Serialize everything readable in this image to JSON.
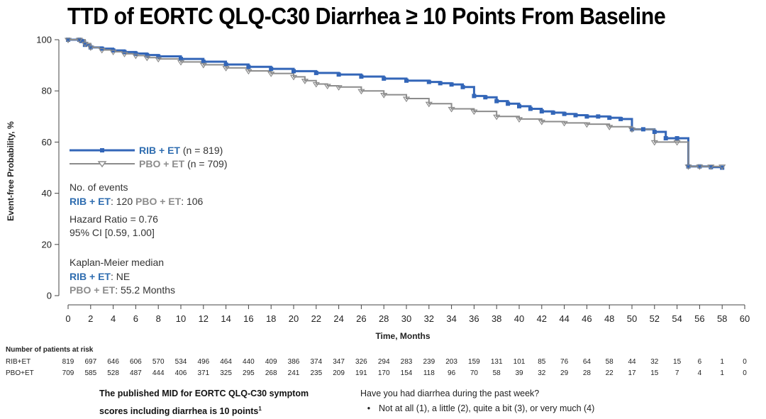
{
  "title": "TTD of EORTC QLQ-C30 Diarrhea ≥ 10 Points From Baseline",
  "colors": {
    "rib": "#3366b8",
    "pbo": "#8c8c8c",
    "axis": "#444444"
  },
  "chart_data": {
    "type": "line",
    "subtype": "kaplan-meier",
    "xlabel": "Time, Months",
    "ylabel": "Event-free Probability, %",
    "xlim": [
      0,
      60
    ],
    "ylim": [
      0,
      100
    ],
    "xticks": [
      0,
      2,
      4,
      6,
      8,
      10,
      12,
      14,
      16,
      18,
      20,
      22,
      24,
      26,
      28,
      30,
      32,
      34,
      36,
      38,
      40,
      42,
      44,
      46,
      48,
      50,
      52,
      54,
      56,
      58,
      60
    ],
    "yticks": [
      0,
      20,
      40,
      60,
      80,
      100
    ],
    "series": [
      {
        "name": "RIB + ET",
        "legend_label": "RIB + ET",
        "legend_n": " (n = 819)",
        "marker": "square",
        "x": [
          0,
          1,
          1.2,
          1.5,
          2,
          3,
          4,
          5,
          6,
          7,
          8,
          10,
          12,
          14,
          16,
          18,
          20,
          22,
          24,
          26,
          28,
          30,
          32,
          33,
          34,
          35,
          36,
          37,
          38,
          39,
          40,
          41,
          42,
          43,
          44,
          45,
          46,
          47,
          48,
          49,
          50,
          51,
          52,
          53,
          54,
          55,
          56,
          57,
          58
        ],
        "y": [
          100,
          100,
          99.5,
          98,
          97,
          96.5,
          95.8,
          95.2,
          94.6,
          94,
          93.5,
          92.5,
          91.4,
          90.3,
          89.4,
          88.6,
          87.7,
          87,
          86.4,
          85.6,
          84.8,
          84,
          83.5,
          83,
          82.5,
          81.5,
          78,
          77.5,
          76,
          75,
          74,
          73,
          72,
          71.5,
          71,
          70.5,
          70,
          70,
          69.5,
          69,
          65,
          65,
          64,
          61.5,
          61.5,
          50.5,
          50.5,
          50.2,
          50
        ]
      },
      {
        "name": "PBO + ET",
        "legend_label": "PBO + ET",
        "legend_n": " (n = 709)",
        "marker": "triangle-down",
        "x": [
          0,
          1,
          1.5,
          2,
          3,
          4,
          5,
          6,
          7,
          8,
          10,
          12,
          14,
          16,
          18,
          20,
          21,
          22,
          23,
          24,
          26,
          28,
          30,
          32,
          34,
          36,
          38,
          40,
          42,
          44,
          46,
          48,
          50,
          52,
          54,
          55,
          56,
          57,
          58
        ],
        "y": [
          100,
          100,
          98.5,
          97,
          96,
          95.3,
          94.5,
          93.8,
          93,
          92.5,
          91.3,
          90.2,
          89,
          87.8,
          86.8,
          85.5,
          84,
          82.7,
          82,
          81.5,
          80,
          78.5,
          77,
          75,
          73,
          72,
          70,
          69,
          68,
          67.5,
          67,
          66,
          65,
          60,
          60,
          50.5,
          50.5,
          50.5,
          50.5
        ]
      }
    ],
    "annotations": {
      "events_title": "No. of events",
      "events_rib_label": "RIB + ET",
      "events_rib_value": ": 120",
      "events_pbo_label": "PBO + ET",
      "events_pbo_value": ": 106",
      "hr": "Hazard Ratio = 0.76",
      "ci": "95% CI [0.59, 1.00]",
      "km_title": "Kaplan-Meier median",
      "km_rib_label": "RIB + ET",
      "km_rib_value": ": NE",
      "km_pbo_label": "PBO + ET",
      "km_pbo_value": ": 55.2 Months"
    },
    "risk_table": {
      "title": "Number of patients at risk",
      "rows": [
        {
          "label": "RIB+ET",
          "values": [
            819,
            697,
            646,
            606,
            570,
            534,
            496,
            464,
            440,
            409,
            386,
            374,
            347,
            326,
            294,
            283,
            239,
            203,
            159,
            131,
            101,
            85,
            76,
            64,
            58,
            44,
            32,
            15,
            6,
            1,
            0
          ]
        },
        {
          "label": "PBO+ET",
          "values": [
            709,
            585,
            528,
            487,
            444,
            406,
            371,
            325,
            295,
            268,
            241,
            235,
            209,
            191,
            170,
            154,
            118,
            96,
            70,
            58,
            39,
            32,
            29,
            28,
            22,
            17,
            15,
            7,
            4,
            1,
            0
          ]
        }
      ]
    }
  },
  "footer": {
    "mid_line1": "The published MID for EORTC QLQ-C30 symptom",
    "mid_line2": "scores including diarrhea is 10 points",
    "mid_sup": "1",
    "question": "Have you had diarrhea during the past week?",
    "bullet": "•",
    "answer": "Not at all (1), a little (2), quite a bit (3), or very much (4)"
  }
}
